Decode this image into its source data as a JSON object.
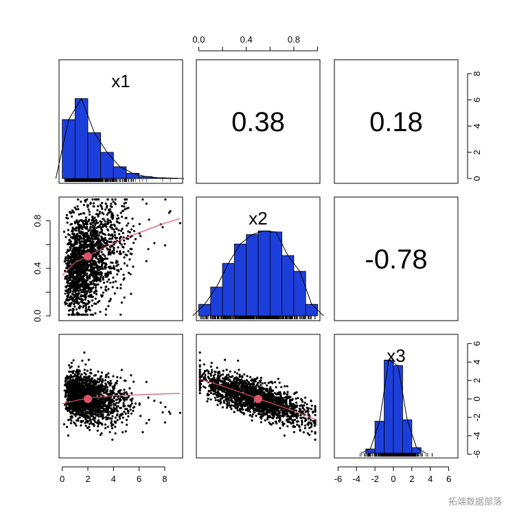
{
  "chart_data": {
    "type": "scatter-matrix",
    "variables": [
      "x1",
      "x2",
      "x3"
    ],
    "correlations": [
      {
        "row": 1,
        "col": 2,
        "label": "0.38"
      },
      {
        "row": 1,
        "col": 3,
        "label": "0.18"
      },
      {
        "row": 2,
        "col": 3,
        "label": "-0.78"
      }
    ],
    "ranges": {
      "x1": [
        0,
        9.2
      ],
      "x2": [
        0,
        1
      ],
      "x3": [
        -6.2,
        6.8
      ]
    },
    "ticks": {
      "x1": [
        "0",
        "2",
        "4",
        "6",
        "8"
      ],
      "x2": [
        "0.0",
        "0.4",
        "0.8"
      ],
      "x3": [
        "-6",
        "-4",
        "-2",
        "0",
        "2",
        "4",
        "6"
      ],
      "hist_y": [
        "0",
        "2",
        "4",
        "6",
        "8"
      ]
    },
    "histograms": {
      "x1": {
        "breaks": [
          0,
          1,
          2,
          3,
          4,
          5,
          6,
          7,
          8,
          9
        ],
        "density_scaled": [
          4.5,
          6.1,
          3.5,
          2.0,
          0.9,
          0.4,
          0.15,
          0.06,
          0.03
        ],
        "ymax": 8.8
      },
      "x2": {
        "breaks": [
          0,
          0.1,
          0.2,
          0.3,
          0.4,
          0.5,
          0.6,
          0.7,
          0.8,
          0.9,
          1.0
        ],
        "density_scaled": [
          0.22,
          0.55,
          1.0,
          1.37,
          1.55,
          1.62,
          1.6,
          1.15,
          0.85,
          0.22
        ],
        "ymax": 2.2
      },
      "x3": {
        "breaks": [
          -3,
          -2,
          -1,
          0,
          1,
          2,
          3
        ],
        "density_scaled": [
          0.3,
          2.3,
          6.7,
          6.3,
          2.4,
          0.4
        ],
        "ymax": 8.3
      }
    },
    "fits": {
      "x1_x2": {
        "x": [
          0,
          1,
          2,
          3,
          4,
          5,
          6,
          7,
          8,
          9.2
        ],
        "y": [
          0.34,
          0.45,
          0.5,
          0.56,
          0.61,
          0.66,
          0.7,
          0.74,
          0.78,
          0.82
        ],
        "center": [
          2,
          0.5
        ]
      },
      "x1_x3": {
        "x": [
          0,
          1,
          2,
          3,
          4,
          6,
          8,
          9.2
        ],
        "y": [
          -0.5,
          -0.2,
          0.1,
          0.2,
          0.35,
          0.45,
          0.55,
          0.6
        ],
        "center": [
          2,
          0.0
        ]
      },
      "x2_x3": {
        "x": [
          0,
          0.2,
          0.4,
          0.5,
          0.6,
          0.8,
          1.0
        ],
        "y": [
          2.2,
          1.4,
          0.5,
          0.0,
          -0.4,
          -1.3,
          -2.3
        ],
        "center": [
          0.5,
          0.0
        ]
      }
    },
    "colors": {
      "hist": "#1c3fdc",
      "fit": "#df5369",
      "points": "#000000"
    },
    "grid": false,
    "legend": "none"
  },
  "watermark": "拓端数据部落"
}
